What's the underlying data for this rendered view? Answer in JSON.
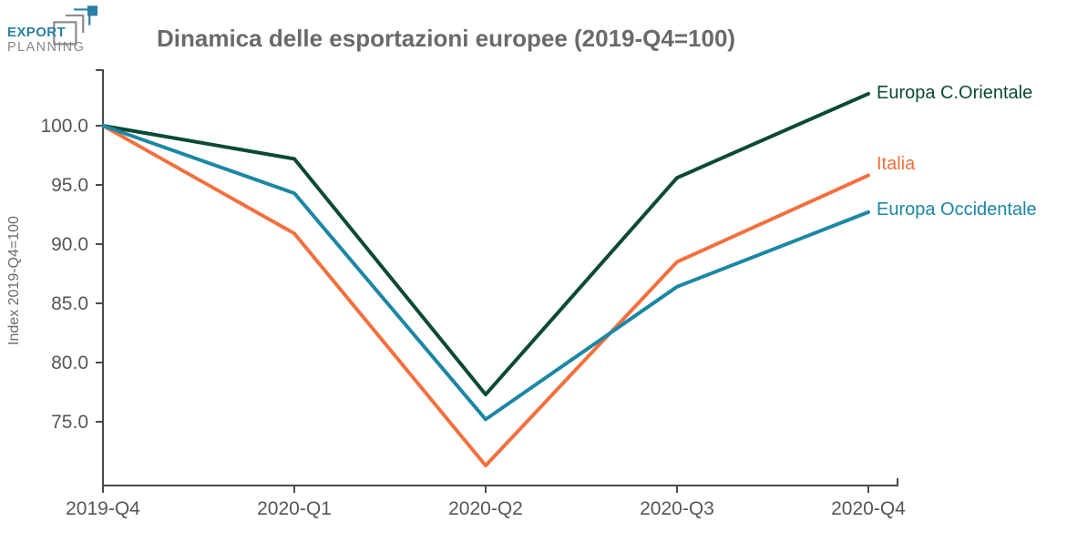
{
  "logo": {
    "line1": "EXPORT",
    "line2": "PLANNING",
    "accent_color": "#2a80a5",
    "gray_color": "#8a8d90"
  },
  "title": "Dinamica delle esportazioni europee (2019-Q4=100)",
  "chart_data": {
    "type": "line",
    "title": "Dinamica delle esportazioni europee (2019-Q4=100)",
    "categories": [
      "2019-Q4",
      "2020-Q1",
      "2020-Q2",
      "2020-Q3",
      "2020-Q4"
    ],
    "series": [
      {
        "name": "Europa C.Orientale",
        "color": "#0b4a35",
        "values": [
          100.0,
          97.2,
          77.3,
          95.6,
          102.7
        ]
      },
      {
        "name": "Italia",
        "color": "#f3703e",
        "values": [
          100.0,
          90.9,
          71.3,
          88.5,
          95.8
        ]
      },
      {
        "name": "Europa Occidentale",
        "color": "#1b87a5",
        "values": [
          100.0,
          94.3,
          75.2,
          86.4,
          92.7
        ]
      }
    ],
    "xlabel": "",
    "ylabel": "Index 2019-Q4=100",
    "y_ticks": [
      100.0,
      95.0,
      90.0,
      85.0,
      80.0,
      75.0
    ],
    "ylim": [
      69.6,
      104.7
    ],
    "grid": false,
    "legend_position": "right"
  }
}
